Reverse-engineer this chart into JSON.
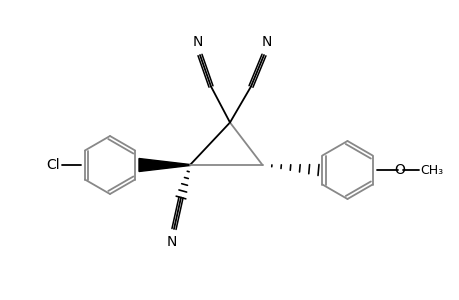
{
  "background_color": "#ffffff",
  "line_color": "#000000",
  "gray_color": "#888888",
  "bond_lw": 1.3,
  "figsize": [
    4.6,
    3.0
  ],
  "dpi": 100,
  "xlim": [
    0,
    9.2
  ],
  "ylim": [
    0,
    6.0
  ]
}
